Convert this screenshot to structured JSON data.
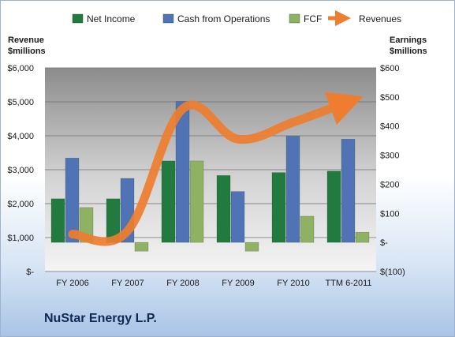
{
  "chart_data": {
    "type": "bar",
    "categories": [
      "FY 2006",
      "FY 2007",
      "FY 2008",
      "FY 2009",
      "FY 2010",
      "TTM 6-2011"
    ],
    "series": [
      {
        "name": "Net Income",
        "axis": "right",
        "values": [
          150,
          150,
          280,
          230,
          240,
          245
        ],
        "color": "#217a3e"
      },
      {
        "name": "Cash from Operations",
        "axis": "right",
        "values": [
          290,
          220,
          485,
          175,
          365,
          355
        ],
        "color": "#4f73b4"
      },
      {
        "name": "FCF",
        "axis": "right",
        "values": [
          120,
          -30,
          280,
          -30,
          90,
          35
        ],
        "color": "#8fb163"
      },
      {
        "name": "Revenues",
        "axis": "left",
        "type": "line",
        "values": [
          1100,
          1200,
          4800,
          3900,
          4400,
          5000
        ],
        "color": "#ee7d2f"
      }
    ],
    "left_axis": {
      "title_line1": "Revenue",
      "title_line2": "$millions",
      "ylim": [
        0,
        6000
      ],
      "tick_values": [
        0,
        1000,
        2000,
        3000,
        4000,
        5000,
        6000
      ],
      "tick_labels": [
        "$-",
        "$1,000",
        "$2,000",
        "$3,000",
        "$4,000",
        "$5,000",
        "$6,000"
      ]
    },
    "right_axis": {
      "title_line1": "Earnings",
      "title_line2": "$millions",
      "ylim": [
        -100,
        600
      ],
      "tick_values": [
        -100,
        0,
        100,
        200,
        300,
        400,
        500,
        600
      ],
      "tick_labels": [
        "$(100)",
        "$-",
        "$100",
        "$200",
        "$300",
        "$400",
        "$500",
        "$600"
      ]
    },
    "legend_position": "top",
    "grid": true,
    "title": "NuStar Energy L.P."
  }
}
